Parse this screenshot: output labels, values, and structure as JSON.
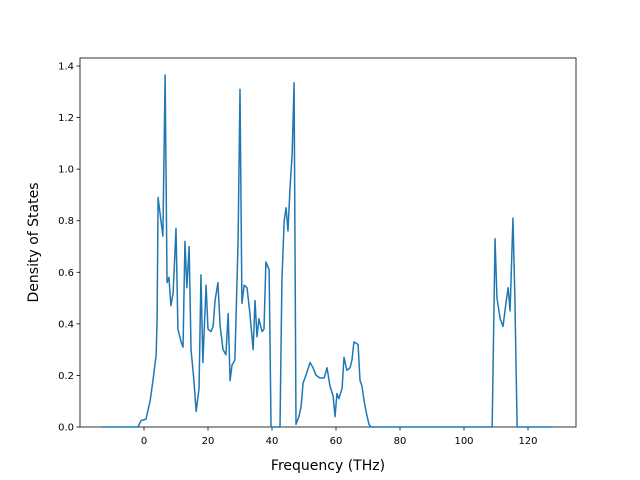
{
  "chart_data": {
    "type": "line",
    "x_label": "Frequency (THz)",
    "y_label": "Density of States",
    "xlim": [
      -20,
      135
    ],
    "ylim": [
      0,
      1.431
    ],
    "xticks": [
      0,
      20,
      40,
      60,
      80,
      100,
      120
    ],
    "yticks": [
      {
        "value": 0,
        "label": "0.0"
      },
      {
        "value": 0.2,
        "label": "0.2"
      },
      {
        "value": 0.4,
        "label": "0.4"
      },
      {
        "value": 0.6,
        "label": "0.6"
      },
      {
        "value": 0.8,
        "label": "0.8"
      },
      {
        "value": 1.0,
        "label": "1.0"
      },
      {
        "value": 1.2,
        "label": "1.2"
      },
      {
        "value": 1.4,
        "label": "1.4"
      }
    ],
    "color": "#1f77b4",
    "x": [
      -13.1,
      -1.9,
      -0.9,
      0.6,
      1.9,
      2.8,
      3.8,
      4.1,
      4.4,
      5.3,
      5.9,
      6.6,
      7.2,
      7.8,
      8.4,
      9.1,
      10.0,
      10.6,
      11.6,
      12.2,
      12.8,
      13.4,
      14.1,
      14.7,
      15.6,
      16.3,
      17.2,
      17.8,
      18.4,
      19.4,
      20.0,
      20.9,
      21.6,
      22.2,
      23.1,
      23.8,
      24.7,
      25.6,
      26.3,
      26.9,
      27.5,
      28.4,
      29.4,
      30.0,
      30.6,
      31.3,
      32.2,
      33.1,
      34.1,
      34.7,
      35.3,
      35.9,
      36.9,
      37.5,
      38.1,
      39.1,
      39.7,
      42.5,
      43.1,
      43.8,
      44.4,
      45.0,
      45.6,
      46.3,
      46.9,
      47.5,
      48.4,
      49.1,
      49.7,
      50.6,
      51.9,
      52.8,
      53.8,
      55.0,
      56.3,
      57.2,
      58.1,
      59.1,
      59.7,
      60.3,
      60.9,
      61.9,
      62.5,
      63.4,
      64.4,
      65.0,
      65.6,
      66.9,
      67.5,
      68.1,
      68.8,
      69.4,
      70.3,
      70.9,
      108.8,
      109.7,
      110.3,
      111.3,
      112.2,
      113.1,
      113.8,
      114.4,
      115.3,
      115.9,
      116.6,
      127.8
    ],
    "values": [
      0,
      0,
      0.025,
      0.03,
      0.1,
      0.18,
      0.28,
      0.42,
      0.89,
      0.8,
      0.74,
      1.365,
      0.56,
      0.58,
      0.47,
      0.52,
      0.77,
      0.38,
      0.33,
      0.31,
      0.72,
      0.54,
      0.7,
      0.3,
      0.18,
      0.06,
      0.15,
      0.59,
      0.25,
      0.55,
      0.38,
      0.37,
      0.39,
      0.49,
      0.56,
      0.39,
      0.3,
      0.28,
      0.44,
      0.18,
      0.24,
      0.26,
      0.72,
      1.31,
      0.48,
      0.55,
      0.54,
      0.44,
      0.3,
      0.49,
      0.35,
      0.42,
      0.37,
      0.38,
      0.64,
      0.61,
      0,
      0,
      0.57,
      0.8,
      0.85,
      0.76,
      0.92,
      1.06,
      1.335,
      0.01,
      0.04,
      0.08,
      0.17,
      0.2,
      0.25,
      0.23,
      0.2,
      0.19,
      0.19,
      0.23,
      0.16,
      0.12,
      0.04,
      0.13,
      0.11,
      0.15,
      0.27,
      0.22,
      0.23,
      0.26,
      0.33,
      0.32,
      0.18,
      0.16,
      0.1,
      0.06,
      0.01,
      0,
      0,
      0.73,
      0.5,
      0.42,
      0.39,
      0.48,
      0.54,
      0.45,
      0.81,
      0.5,
      0,
      0
    ]
  }
}
